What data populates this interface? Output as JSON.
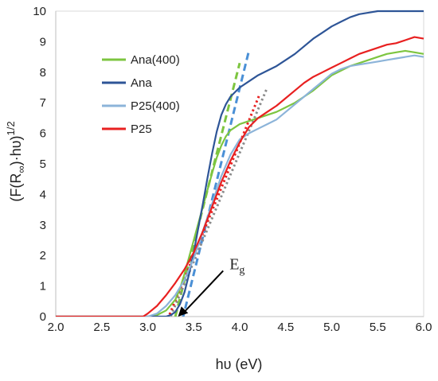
{
  "chart_data": {
    "type": "line",
    "xlabel": "hυ (eV)",
    "ylabel": "(F(R∞)·hυ)1/2",
    "ylabel_base": "(F(R",
    "ylabel_sub": "∞",
    "ylabel_mid": ")·hυ)",
    "ylabel_sup": "1/2",
    "xlim": [
      2.0,
      6.0
    ],
    "ylim": [
      0,
      10
    ],
    "x_ticks": [
      "2.0",
      "2.5",
      "3.0",
      "3.5",
      "4.0",
      "4.5",
      "5.0",
      "5.5",
      "6.0"
    ],
    "y_ticks": [
      "0",
      "1",
      "2",
      "3",
      "4",
      "5",
      "6",
      "7",
      "8",
      "9",
      "10"
    ],
    "grid": false,
    "legend_position": "upper-left",
    "series": [
      {
        "name": "Ana(400)",
        "color": "#7dc540",
        "x": [
          2.0,
          3.0,
          3.1,
          3.2,
          3.3,
          3.35,
          3.4,
          3.45,
          3.5,
          3.55,
          3.6,
          3.65,
          3.7,
          3.75,
          3.8,
          3.85,
          3.9,
          4.0,
          4.1,
          4.2,
          4.3,
          4.4,
          4.5,
          4.6,
          4.7,
          4.8,
          4.9,
          5.0,
          5.1,
          5.2,
          5.3,
          5.4,
          5.5,
          5.6,
          5.7,
          5.8,
          5.9,
          6.0
        ],
        "y": [
          0,
          0,
          0.05,
          0.2,
          0.55,
          0.9,
          1.4,
          1.95,
          2.5,
          3.05,
          3.6,
          4.15,
          4.7,
          5.2,
          5.6,
          5.9,
          6.1,
          6.3,
          6.4,
          6.5,
          6.6,
          6.7,
          6.85,
          7.0,
          7.2,
          7.4,
          7.65,
          7.9,
          8.05,
          8.2,
          8.3,
          8.4,
          8.5,
          8.6,
          8.65,
          8.7,
          8.65,
          8.6
        ]
      },
      {
        "name": "Ana",
        "color": "#2e5597",
        "x": [
          2.0,
          3.2,
          3.25,
          3.3,
          3.35,
          3.4,
          3.45,
          3.5,
          3.55,
          3.6,
          3.65,
          3.7,
          3.75,
          3.8,
          3.85,
          3.9,
          4.0,
          4.1,
          4.2,
          4.3,
          4.4,
          4.5,
          4.6,
          4.7,
          4.8,
          4.9,
          5.0,
          5.1,
          5.2,
          5.3,
          5.4,
          5.5,
          5.6,
          5.7,
          5.8,
          5.9,
          6.0
        ],
        "y": [
          0,
          0,
          0.05,
          0.15,
          0.4,
          0.8,
          1.4,
          2.1,
          2.9,
          3.7,
          4.55,
          5.35,
          6.05,
          6.6,
          6.95,
          7.2,
          7.5,
          7.7,
          7.9,
          8.05,
          8.2,
          8.4,
          8.6,
          8.85,
          9.1,
          9.3,
          9.5,
          9.65,
          9.8,
          9.9,
          9.95,
          10.0,
          10.0,
          10.0,
          10.0,
          10.0,
          10.0
        ]
      },
      {
        "name": "P25(400)",
        "color": "#8cb4d9",
        "x": [
          2.0,
          3.0,
          3.1,
          3.2,
          3.3,
          3.4,
          3.5,
          3.6,
          3.7,
          3.8,
          3.9,
          4.0,
          4.1,
          4.2,
          4.3,
          4.4,
          4.5,
          4.6,
          4.7,
          4.8,
          4.9,
          5.0,
          5.1,
          5.2,
          5.3,
          5.4,
          5.5,
          5.6,
          5.7,
          5.8,
          5.9,
          6.0
        ],
        "y": [
          0,
          0,
          0.1,
          0.35,
          0.7,
          1.2,
          1.9,
          2.8,
          3.7,
          4.6,
          5.3,
          5.8,
          6.0,
          6.15,
          6.3,
          6.45,
          6.7,
          6.95,
          7.2,
          7.45,
          7.7,
          7.95,
          8.1,
          8.2,
          8.25,
          8.3,
          8.35,
          8.4,
          8.45,
          8.5,
          8.55,
          8.5
        ]
      },
      {
        "name": "P25",
        "color": "#e82020",
        "x": [
          2.0,
          2.95,
          3.0,
          3.1,
          3.2,
          3.3,
          3.4,
          3.5,
          3.6,
          3.7,
          3.8,
          3.9,
          4.0,
          4.1,
          4.2,
          4.3,
          4.4,
          4.5,
          4.6,
          4.7,
          4.8,
          4.9,
          5.0,
          5.1,
          5.2,
          5.3,
          5.4,
          5.5,
          5.6,
          5.7,
          5.8,
          5.9,
          6.0
        ],
        "y": [
          0,
          0,
          0.1,
          0.35,
          0.7,
          1.1,
          1.55,
          2.1,
          2.8,
          3.6,
          4.4,
          5.1,
          5.7,
          6.2,
          6.5,
          6.7,
          6.9,
          7.15,
          7.4,
          7.65,
          7.85,
          8.0,
          8.15,
          8.3,
          8.45,
          8.6,
          8.7,
          8.8,
          8.9,
          8.95,
          9.05,
          9.15,
          9.1
        ]
      }
    ],
    "fit_lines": [
      {
        "series": "Ana(400)",
        "color": "#7dc540",
        "style": "dashed",
        "x": [
          3.3,
          4.0
        ],
        "y": [
          0.0,
          8.3
        ]
      },
      {
        "series": "Ana",
        "color": "#4a90d6",
        "style": "dashed",
        "x": [
          3.32,
          4.1
        ],
        "y": [
          -0.8,
          8.7
        ]
      },
      {
        "series": "P25(400)",
        "color": "#8a8a8a",
        "style": "dotted",
        "x": [
          3.15,
          4.3
        ],
        "y": [
          -0.7,
          7.5
        ]
      },
      {
        "series": "P25",
        "color": "#e82020",
        "style": "dotted",
        "x": [
          3.12,
          4.22
        ],
        "y": [
          -0.8,
          7.3
        ]
      }
    ],
    "annotation": {
      "label": "E",
      "subscript": "g",
      "arrow_from": [
        3.82,
        1.5
      ],
      "arrow_to": [
        3.33,
        0.0
      ]
    }
  }
}
